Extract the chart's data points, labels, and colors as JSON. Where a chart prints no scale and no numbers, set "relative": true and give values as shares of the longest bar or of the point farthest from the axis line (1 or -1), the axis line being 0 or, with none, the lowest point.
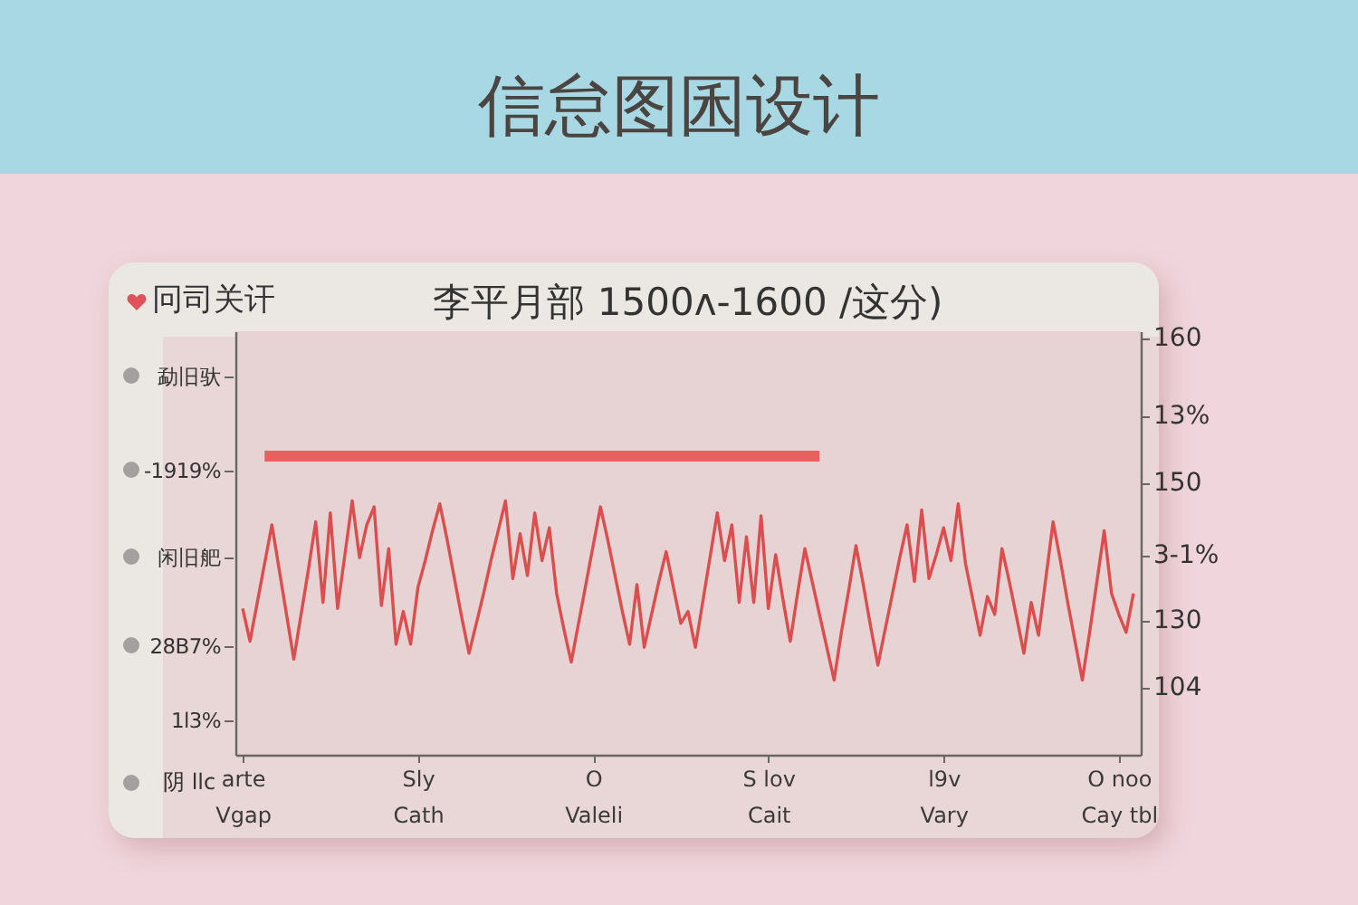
{
  "chart_data": {
    "type": "line",
    "title": "信怠图囷设计",
    "subtitle": "李平月部 1500ʌ-1600 /这分)",
    "relative": true,
    "annotations": [
      "冋司关讦",
      "勐旧驮",
      "-1919%",
      "闲旧舥",
      "28B7%",
      "1l3%",
      "阴 llc",
      "160",
      "13%",
      "150",
      "3-1%",
      "130",
      "104"
    ],
    "categories": [
      "arte\nVgap",
      null,
      null,
      null,
      null,
      null,
      null,
      null,
      null,
      null,
      null,
      null,
      null,
      null,
      null,
      null,
      null,
      null,
      null,
      null,
      null,
      null,
      null,
      null,
      "Sly\nCath",
      null,
      null,
      null,
      null,
      null,
      null,
      null,
      null,
      null,
      null,
      null,
      null,
      null,
      null,
      null,
      null,
      null,
      null,
      null,
      null,
      null,
      null,
      null,
      "O\nValeli",
      null,
      null,
      null,
      null,
      null,
      null,
      null,
      null,
      null,
      null,
      null,
      null,
      null,
      null,
      null,
      null,
      null,
      null,
      null,
      null,
      null,
      null,
      null,
      "S lov\nCait",
      null,
      null,
      null,
      null,
      null,
      null,
      null,
      null,
      null,
      null,
      null,
      null,
      null,
      null,
      null,
      null,
      null,
      null,
      null,
      null,
      null,
      null,
      null,
      "l9v\nVary",
      null,
      null,
      null,
      null,
      null,
      null,
      null,
      null,
      null,
      null,
      null,
      null,
      null,
      null,
      null,
      null,
      null,
      null,
      null,
      null,
      null,
      null,
      null,
      "O noo\nCay tbl",
      null,
      null
    ],
    "series": [
      {
        "color": "#dc4e4e",
        "values": [
          0.49,
          0.38,
          0.51,
          0.64,
          0.77,
          0.62,
          0.47,
          0.32,
          0.47,
          0.62,
          0.78,
          0.51,
          0.81,
          0.49,
          0.67,
          0.85,
          0.66,
          0.77,
          0.83,
          0.5,
          0.69,
          0.37,
          0.48,
          0.37,
          0.56,
          0.65,
          0.75,
          0.84,
          0.72,
          0.59,
          0.46,
          0.34,
          0.44,
          0.54,
          0.65,
          0.75,
          0.85,
          0.59,
          0.74,
          0.6,
          0.81,
          0.65,
          0.76,
          0.54,
          0.42,
          0.31,
          0.44,
          0.57,
          0.7,
          0.83,
          0.72,
          0.6,
          0.48,
          0.37,
          0.57,
          0.36,
          0.47,
          0.58,
          0.68,
          0.56,
          0.44,
          0.48,
          0.36,
          0.51,
          0.66,
          0.81,
          0.65,
          0.77,
          0.51,
          0.73,
          0.51,
          0.8,
          0.49,
          0.67,
          0.52,
          0.38,
          0.54,
          0.69,
          0.58,
          0.47,
          0.36,
          0.25,
          0.41,
          0.55,
          0.7,
          0.57,
          0.43,
          0.3,
          0.42,
          0.54,
          0.66,
          0.77,
          0.58,
          0.82,
          0.59,
          0.67,
          0.76,
          0.65,
          0.84,
          0.64,
          0.52,
          0.4,
          0.53,
          0.47,
          0.69,
          0.58,
          0.46,
          0.34,
          0.51,
          0.4,
          0.59,
          0.78,
          0.65,
          0.51,
          0.38,
          0.25,
          0.41,
          0.58,
          0.75,
          0.54,
          0.47,
          0.41,
          0.54
        ]
      },
      {
        "color": "#e9605f",
        "values": [
          null,
          null,
          null,
          1,
          1,
          1,
          1,
          1,
          1,
          1,
          1,
          1,
          1,
          1,
          1,
          1,
          1,
          1,
          1,
          1,
          1,
          1,
          1,
          1,
          1,
          1,
          1,
          1,
          1,
          1,
          1,
          1,
          1,
          1,
          1,
          1,
          1,
          1,
          1,
          1,
          1,
          1,
          1,
          1,
          1,
          1,
          1,
          1,
          1,
          1,
          1,
          1,
          1,
          1,
          1,
          1,
          1,
          1,
          1,
          1,
          1,
          1,
          1,
          1,
          1,
          1,
          1,
          1,
          1,
          1,
          1,
          1,
          1,
          1,
          1,
          1,
          1,
          1,
          1,
          1,
          null,
          null,
          null,
          null,
          null,
          null,
          null,
          null,
          null,
          null,
          null,
          null,
          null,
          null,
          null,
          null,
          null,
          null,
          null,
          null,
          null,
          null,
          null,
          null,
          null,
          null,
          null,
          null,
          null,
          null,
          null,
          null,
          null,
          null,
          null,
          null,
          null,
          null,
          null,
          null,
          null,
          null,
          null
        ]
      }
    ]
  }
}
